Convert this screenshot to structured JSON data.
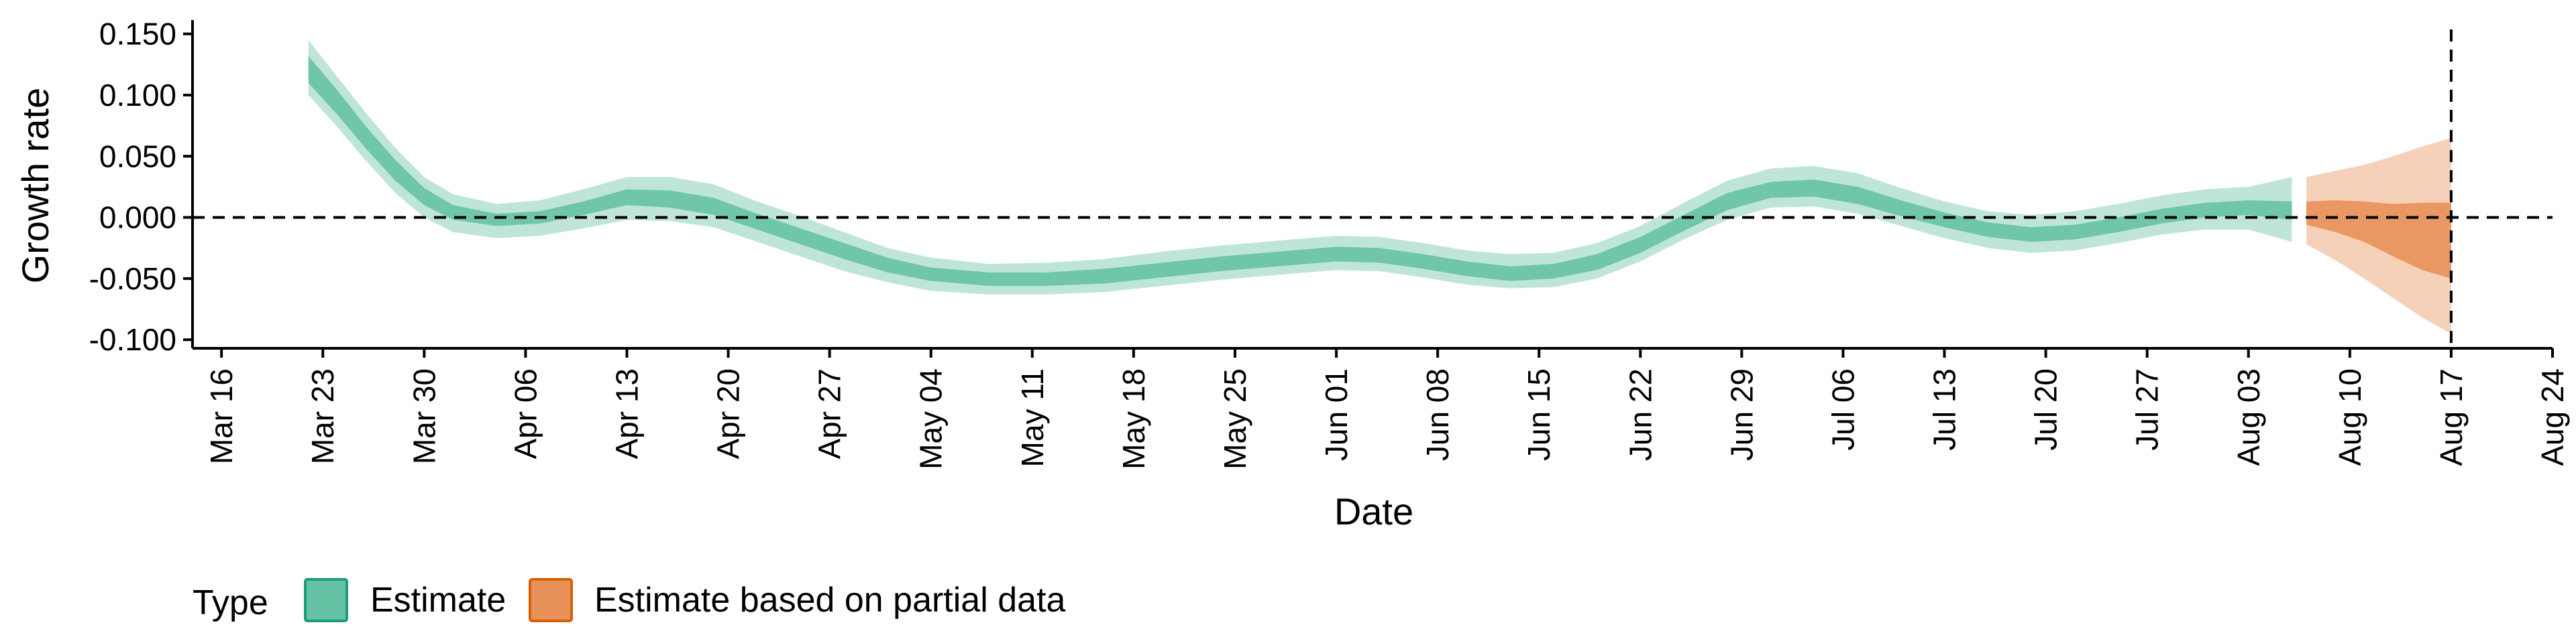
{
  "chart_data": {
    "type": "area",
    "title": "",
    "xlabel": "Date",
    "ylabel": "Growth rate",
    "ylim": [
      -0.107,
      0.158
    ],
    "xlim": [
      "2020-03-14",
      "2020-08-24"
    ],
    "x_tick_labels": [
      "Mar 16",
      "Mar 23",
      "Mar 30",
      "Apr 06",
      "Apr 13",
      "Apr 20",
      "Apr 27",
      "May 04",
      "May 11",
      "May 18",
      "May 25",
      "Jun 01",
      "Jun 08",
      "Jun 15",
      "Jun 22",
      "Jun 29",
      "Jul 06",
      "Jul 13",
      "Jul 20",
      "Jul 27",
      "Aug 03",
      "Aug 10",
      "Aug 17",
      "Aug 24"
    ],
    "x_tick_dates": [
      "2020-03-16",
      "2020-03-23",
      "2020-03-30",
      "2020-04-06",
      "2020-04-13",
      "2020-04-20",
      "2020-04-27",
      "2020-05-04",
      "2020-05-11",
      "2020-05-18",
      "2020-05-25",
      "2020-06-01",
      "2020-06-08",
      "2020-06-15",
      "2020-06-22",
      "2020-06-29",
      "2020-07-06",
      "2020-07-13",
      "2020-07-20",
      "2020-07-27",
      "2020-08-03",
      "2020-08-10",
      "2020-08-17",
      "2020-08-24"
    ],
    "y_ticks": [
      -0.1,
      -0.05,
      0.0,
      0.05,
      0.1,
      0.15
    ],
    "y_tick_labels": [
      "-0.100",
      "-0.050",
      "0.000",
      "0.050",
      "0.100",
      "0.150"
    ],
    "hline": 0.0,
    "vline_date": "2020-08-17",
    "grid": false,
    "legend": {
      "title": "Type",
      "position": "bottom-left",
      "entries": [
        {
          "label": "Estimate",
          "color": "#66c2a5",
          "border": "#1b9e77"
        },
        {
          "label": "Estimate based on partial data",
          "color": "#e8915a",
          "border": "#d95f02"
        }
      ]
    },
    "series": [
      {
        "name": "Estimate",
        "color": "#66c2a5",
        "points": [
          {
            "x": "2020-03-22",
            "lo90": 0.1,
            "lo50": 0.11,
            "hi50": 0.132,
            "hi90": 0.145
          },
          {
            "x": "2020-03-24",
            "lo90": 0.074,
            "lo50": 0.084,
            "hi50": 0.104,
            "hi90": 0.115
          },
          {
            "x": "2020-03-26",
            "lo90": 0.046,
            "lo50": 0.056,
            "hi50": 0.074,
            "hi90": 0.085
          },
          {
            "x": "2020-03-28",
            "lo90": 0.02,
            "lo50": 0.03,
            "hi50": 0.047,
            "hi90": 0.057
          },
          {
            "x": "2020-03-30",
            "lo90": 0.0,
            "lo50": 0.01,
            "hi50": 0.024,
            "hi90": 0.033
          },
          {
            "x": "2020-04-01",
            "lo90": -0.012,
            "lo50": -0.002,
            "hi50": 0.01,
            "hi90": 0.019
          },
          {
            "x": "2020-04-04",
            "lo90": -0.017,
            "lo50": -0.007,
            "hi50": 0.003,
            "hi90": 0.011
          },
          {
            "x": "2020-04-07",
            "lo90": -0.015,
            "lo50": -0.005,
            "hi50": 0.005,
            "hi90": 0.014
          },
          {
            "x": "2020-04-10",
            "lo90": -0.009,
            "lo50": 0.002,
            "hi50": 0.013,
            "hi90": 0.023
          },
          {
            "x": "2020-04-13",
            "lo90": -0.002,
            "lo50": 0.01,
            "hi50": 0.023,
            "hi90": 0.033
          },
          {
            "x": "2020-04-16",
            "lo90": -0.003,
            "lo50": 0.008,
            "hi50": 0.022,
            "hi90": 0.033
          },
          {
            "x": "2020-04-19",
            "lo90": -0.008,
            "lo50": 0.002,
            "hi50": 0.016,
            "hi90": 0.027
          },
          {
            "x": "2020-04-22",
            "lo90": -0.02,
            "lo50": -0.01,
            "hi50": 0.003,
            "hi90": 0.013
          },
          {
            "x": "2020-04-25",
            "lo90": -0.032,
            "lo50": -0.022,
            "hi50": -0.009,
            "hi90": 0.001
          },
          {
            "x": "2020-04-28",
            "lo90": -0.044,
            "lo50": -0.034,
            "hi50": -0.021,
            "hi90": -0.012
          },
          {
            "x": "2020-05-01",
            "lo90": -0.053,
            "lo50": -0.045,
            "hi50": -0.033,
            "hi90": -0.025
          },
          {
            "x": "2020-05-04",
            "lo90": -0.06,
            "lo50": -0.052,
            "hi50": -0.041,
            "hi90": -0.033
          },
          {
            "x": "2020-05-08",
            "lo90": -0.063,
            "lo50": -0.056,
            "hi50": -0.045,
            "hi90": -0.038
          },
          {
            "x": "2020-05-12",
            "lo90": -0.063,
            "lo50": -0.056,
            "hi50": -0.045,
            "hi90": -0.037
          },
          {
            "x": "2020-05-16",
            "lo90": -0.061,
            "lo50": -0.054,
            "hi50": -0.042,
            "hi90": -0.034
          },
          {
            "x": "2020-05-20",
            "lo90": -0.056,
            "lo50": -0.049,
            "hi50": -0.037,
            "hi90": -0.028
          },
          {
            "x": "2020-05-24",
            "lo90": -0.051,
            "lo50": -0.044,
            "hi50": -0.032,
            "hi90": -0.023
          },
          {
            "x": "2020-05-28",
            "lo90": -0.047,
            "lo50": -0.04,
            "hi50": -0.028,
            "hi90": -0.019
          },
          {
            "x": "2020-06-01",
            "lo90": -0.043,
            "lo50": -0.036,
            "hi50": -0.024,
            "hi90": -0.015
          },
          {
            "x": "2020-06-04",
            "lo90": -0.044,
            "lo50": -0.037,
            "hi50": -0.025,
            "hi90": -0.016
          },
          {
            "x": "2020-06-07",
            "lo90": -0.049,
            "lo50": -0.042,
            "hi50": -0.03,
            "hi90": -0.021
          },
          {
            "x": "2020-06-10",
            "lo90": -0.055,
            "lo50": -0.048,
            "hi50": -0.036,
            "hi90": -0.027
          },
          {
            "x": "2020-06-13",
            "lo90": -0.058,
            "lo50": -0.052,
            "hi50": -0.04,
            "hi90": -0.03
          },
          {
            "x": "2020-06-16",
            "lo90": -0.057,
            "lo50": -0.05,
            "hi50": -0.038,
            "hi90": -0.029
          },
          {
            "x": "2020-06-19",
            "lo90": -0.05,
            "lo50": -0.043,
            "hi50": -0.03,
            "hi90": -0.021
          },
          {
            "x": "2020-06-22",
            "lo90": -0.036,
            "lo50": -0.029,
            "hi50": -0.016,
            "hi90": -0.007
          },
          {
            "x": "2020-06-25",
            "lo90": -0.018,
            "lo50": -0.011,
            "hi50": 0.002,
            "hi90": 0.012
          },
          {
            "x": "2020-06-28",
            "lo90": -0.002,
            "lo50": 0.006,
            "hi50": 0.02,
            "hi90": 0.03
          },
          {
            "x": "2020-07-01",
            "lo90": 0.008,
            "lo50": 0.016,
            "hi50": 0.029,
            "hi90": 0.04
          },
          {
            "x": "2020-07-04",
            "lo90": 0.009,
            "lo50": 0.017,
            "hi50": 0.031,
            "hi90": 0.042
          },
          {
            "x": "2020-07-07",
            "lo90": 0.003,
            "lo50": 0.011,
            "hi50": 0.025,
            "hi90": 0.036
          },
          {
            "x": "2020-07-10",
            "lo90": -0.007,
            "lo50": 0.001,
            "hi50": 0.014,
            "hi90": 0.024
          },
          {
            "x": "2020-07-13",
            "lo90": -0.017,
            "lo50": -0.008,
            "hi50": 0.004,
            "hi90": 0.013
          },
          {
            "x": "2020-07-16",
            "lo90": -0.025,
            "lo50": -0.016,
            "hi50": -0.004,
            "hi90": 0.005
          },
          {
            "x": "2020-07-19",
            "lo90": -0.029,
            "lo50": -0.02,
            "hi50": -0.008,
            "hi90": 0.002
          },
          {
            "x": "2020-07-22",
            "lo90": -0.027,
            "lo50": -0.018,
            "hi50": -0.006,
            "hi90": 0.005
          },
          {
            "x": "2020-07-25",
            "lo90": -0.021,
            "lo50": -0.012,
            "hi50": 0.0,
            "hi90": 0.011
          },
          {
            "x": "2020-07-28",
            "lo90": -0.014,
            "lo50": -0.005,
            "hi50": 0.007,
            "hi90": 0.018
          },
          {
            "x": "2020-07-31",
            "lo90": -0.01,
            "lo50": 0.0,
            "hi50": 0.012,
            "hi90": 0.023
          },
          {
            "x": "2020-08-03",
            "lo90": -0.01,
            "lo50": 0.002,
            "hi50": 0.014,
            "hi90": 0.025
          },
          {
            "x": "2020-08-06",
            "lo90": -0.02,
            "lo50": -0.002,
            "hi50": 0.013,
            "hi90": 0.033
          }
        ]
      },
      {
        "name": "Estimate based on partial data",
        "color": "#e8915a",
        "points": [
          {
            "x": "2020-08-07",
            "lo90": -0.022,
            "lo50": -0.006,
            "hi50": 0.013,
            "hi90": 0.033
          },
          {
            "x": "2020-08-09",
            "lo90": -0.035,
            "lo50": -0.012,
            "hi50": 0.014,
            "hi90": 0.038
          },
          {
            "x": "2020-08-11",
            "lo90": -0.05,
            "lo50": -0.02,
            "hi50": 0.013,
            "hi90": 0.043
          },
          {
            "x": "2020-08-13",
            "lo90": -0.066,
            "lo50": -0.032,
            "hi50": 0.011,
            "hi90": 0.05
          },
          {
            "x": "2020-08-15",
            "lo90": -0.082,
            "lo50": -0.043,
            "hi50": 0.012,
            "hi90": 0.058
          },
          {
            "x": "2020-08-17",
            "lo90": -0.095,
            "lo50": -0.05,
            "hi50": 0.012,
            "hi90": 0.065
          }
        ]
      }
    ]
  }
}
